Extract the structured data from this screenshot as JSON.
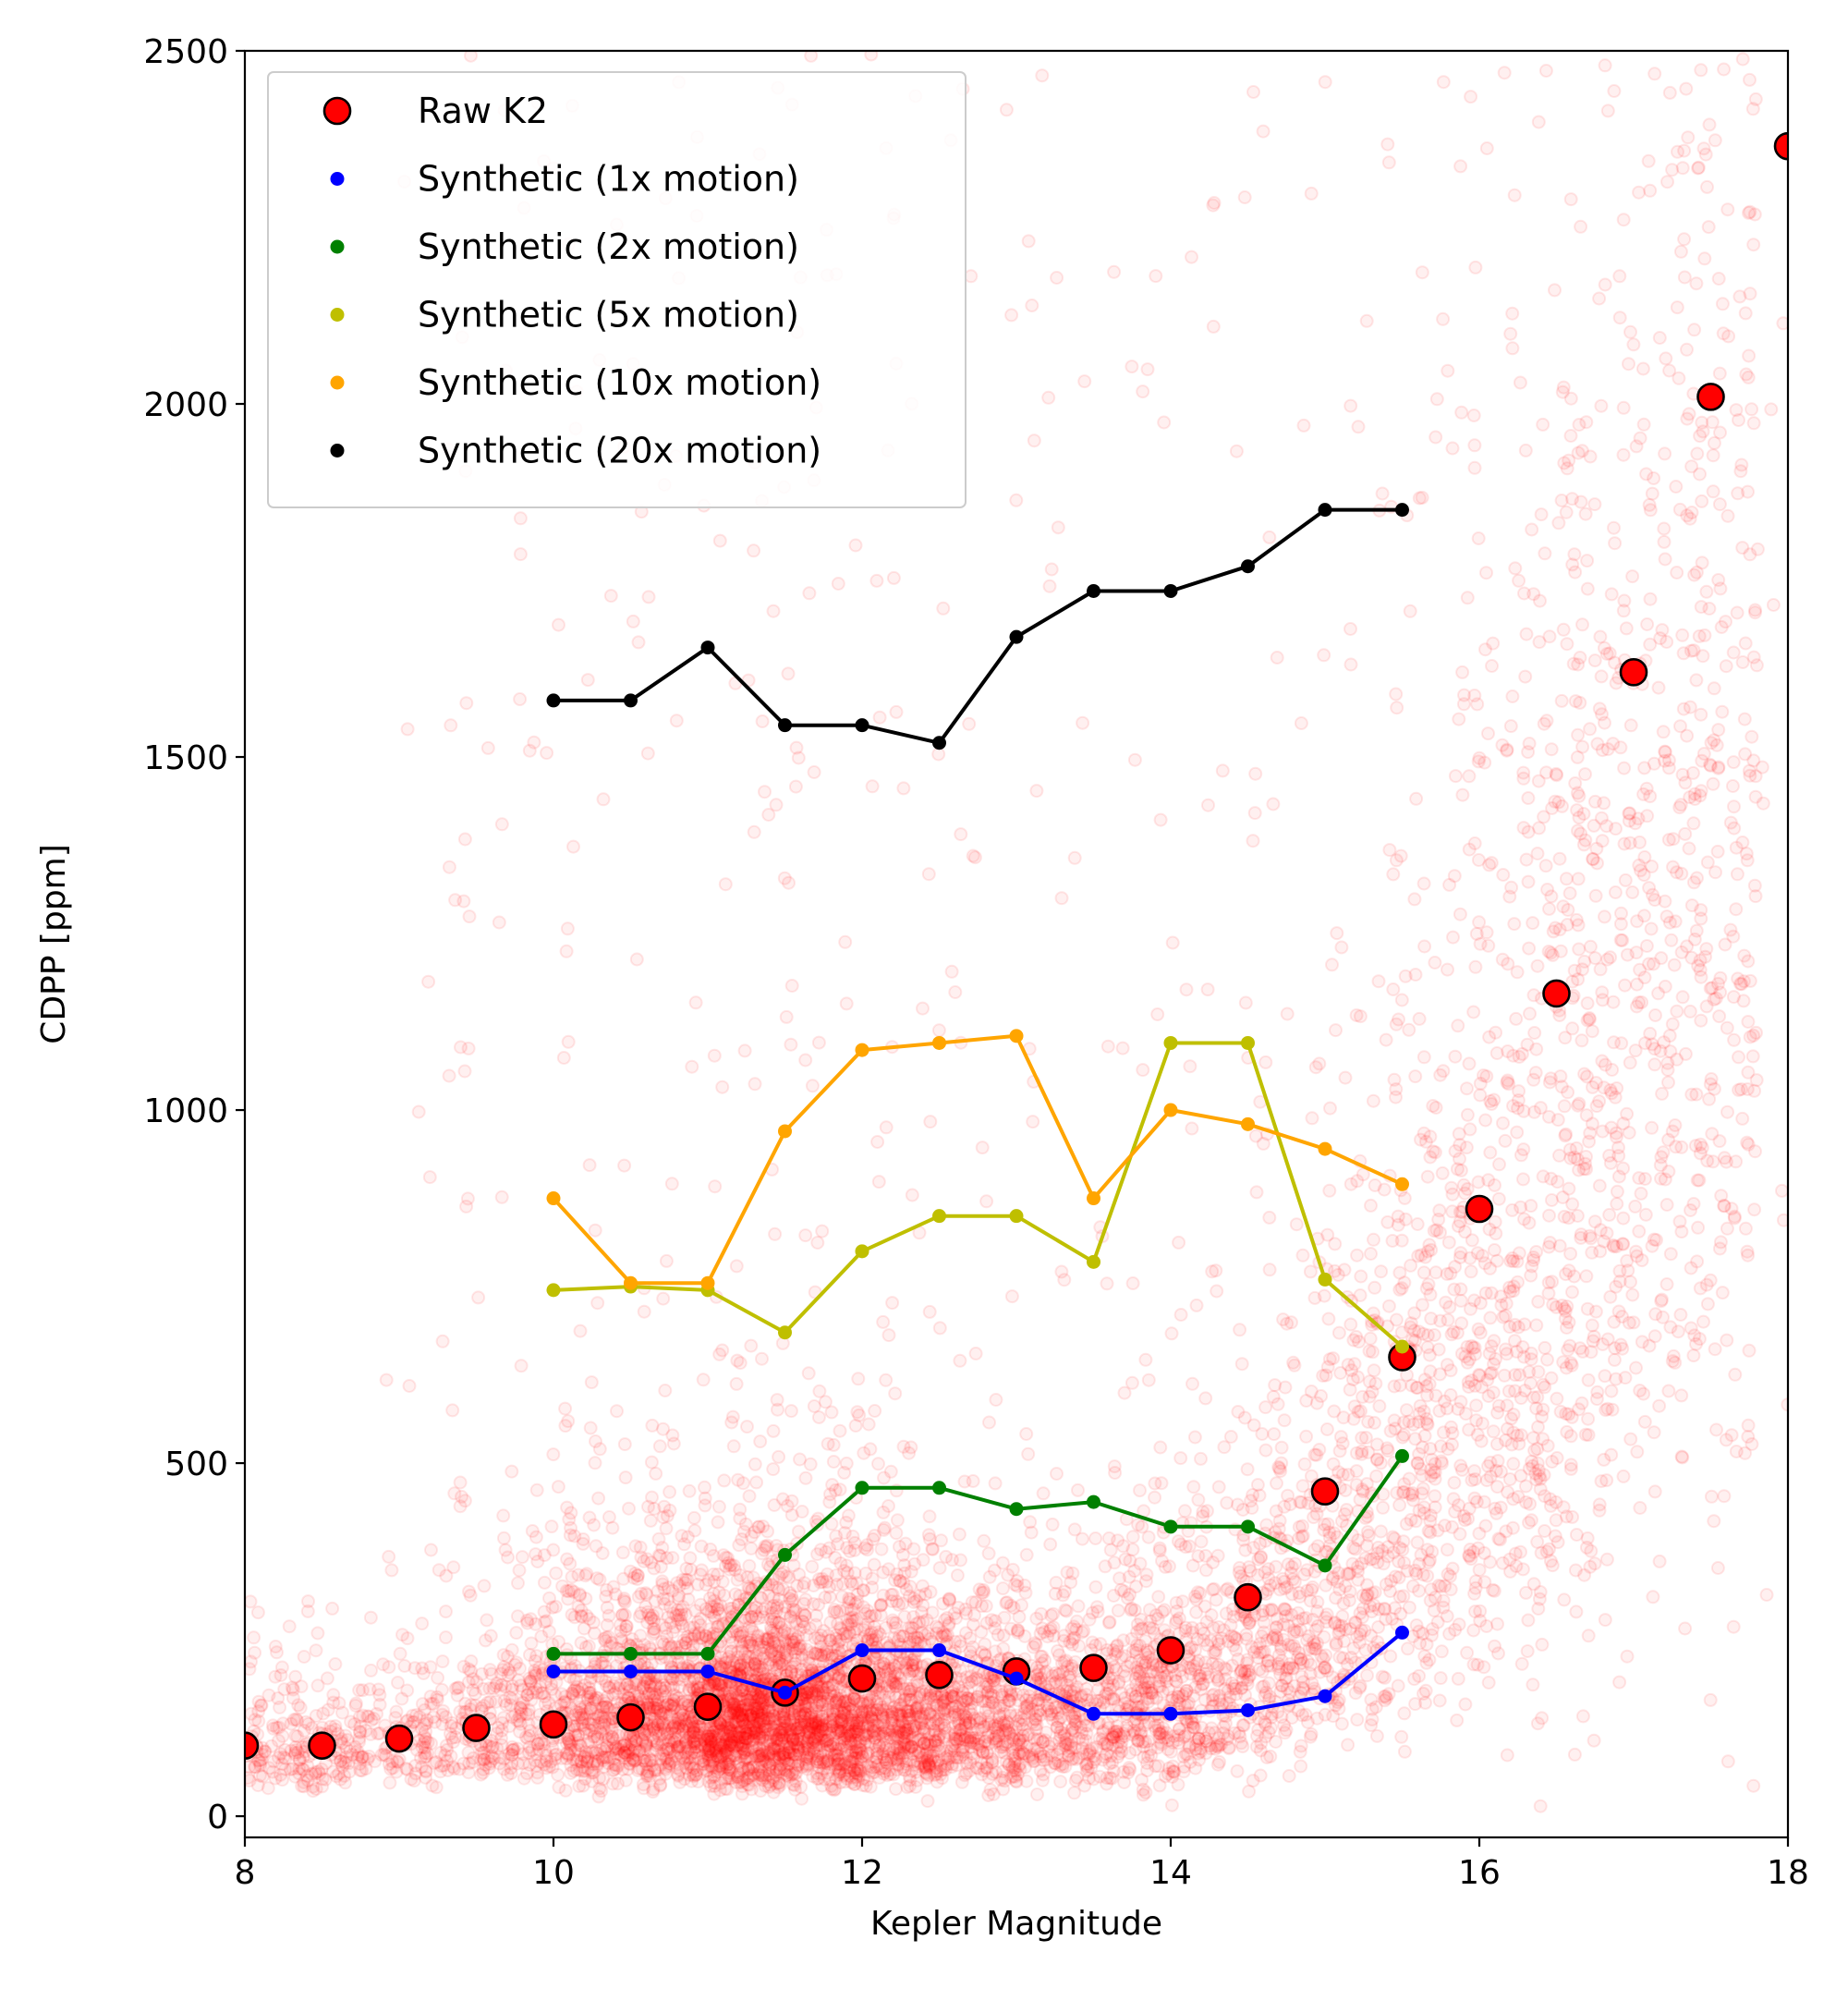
{
  "chart_data": {
    "type": "scatter",
    "title": "",
    "xlabel": "Kepler Magnitude",
    "ylabel": "CDPP [ppm]",
    "xlim": [
      8,
      18
    ],
    "ylim": [
      -30,
      2500
    ],
    "xticks": [
      8,
      10,
      12,
      14,
      16,
      18
    ],
    "yticks": [
      0,
      500,
      1000,
      1500,
      2000,
      2500
    ],
    "grid": false,
    "legend_position": "top-left",
    "background_scatter": {
      "description_color": "#ff0000",
      "opacity": 0.06,
      "marker": "open-circle"
    },
    "series": [
      {
        "name": "Raw K2",
        "marker": "large-circle",
        "color": "#ff0000",
        "edgecolor": "#000000",
        "line": false,
        "x": [
          8,
          8.5,
          9,
          9.5,
          10,
          10.5,
          11,
          11.5,
          12,
          12.5,
          13,
          13.5,
          14,
          14.5,
          15,
          15.5,
          16,
          16.5,
          17,
          17.5,
          18
        ],
        "y": [
          100,
          100,
          110,
          125,
          130,
          140,
          155,
          175,
          195,
          200,
          205,
          210,
          235,
          310,
          460,
          650,
          860,
          1165,
          1620,
          2010,
          2365
        ]
      },
      {
        "name": "Synthetic (1x motion)",
        "marker": "dot",
        "color": "#0000ff",
        "line": true,
        "x": [
          10,
          10.5,
          11,
          11.5,
          12,
          12.5,
          13,
          13.5,
          14,
          14.5,
          15,
          15.5
        ],
        "y": [
          205,
          205,
          205,
          175,
          235,
          235,
          195,
          145,
          145,
          150,
          170,
          260
        ]
      },
      {
        "name": "Synthetic (2x motion)",
        "marker": "dot",
        "color": "#008000",
        "line": true,
        "x": [
          10,
          10.5,
          11,
          11.5,
          12,
          12.5,
          13,
          13.5,
          14,
          14.5,
          15,
          15.5
        ],
        "y": [
          230,
          230,
          230,
          370,
          465,
          465,
          435,
          445,
          410,
          410,
          355,
          510
        ]
      },
      {
        "name": "Synthetic (5x motion)",
        "marker": "dot",
        "color": "#bfbf00",
        "line": true,
        "x": [
          10,
          10.5,
          11,
          11.5,
          12,
          12.5,
          13,
          13.5,
          14,
          14.5,
          15,
          15.5
        ],
        "y": [
          745,
          750,
          745,
          685,
          800,
          850,
          850,
          785,
          1095,
          1095,
          760,
          665
        ]
      },
      {
        "name": "Synthetic (10x motion)",
        "marker": "dot",
        "color": "#ffa500",
        "line": true,
        "x": [
          10,
          10.5,
          11,
          11.5,
          12,
          12.5,
          13,
          13.5,
          14,
          14.5,
          15,
          15.5
        ],
        "y": [
          875,
          755,
          755,
          970,
          1085,
          1095,
          1105,
          875,
          1000,
          980,
          945,
          895
        ]
      },
      {
        "name": "Synthetic (20x motion)",
        "marker": "dot",
        "color": "#000000",
        "line": true,
        "x": [
          10,
          10.5,
          11,
          11.5,
          12,
          12.5,
          13,
          13.5,
          14,
          14.5,
          15,
          15.5
        ],
        "y": [
          1580,
          1580,
          1655,
          1545,
          1545,
          1520,
          1670,
          1735,
          1735,
          1770,
          1850,
          1850
        ]
      }
    ]
  }
}
